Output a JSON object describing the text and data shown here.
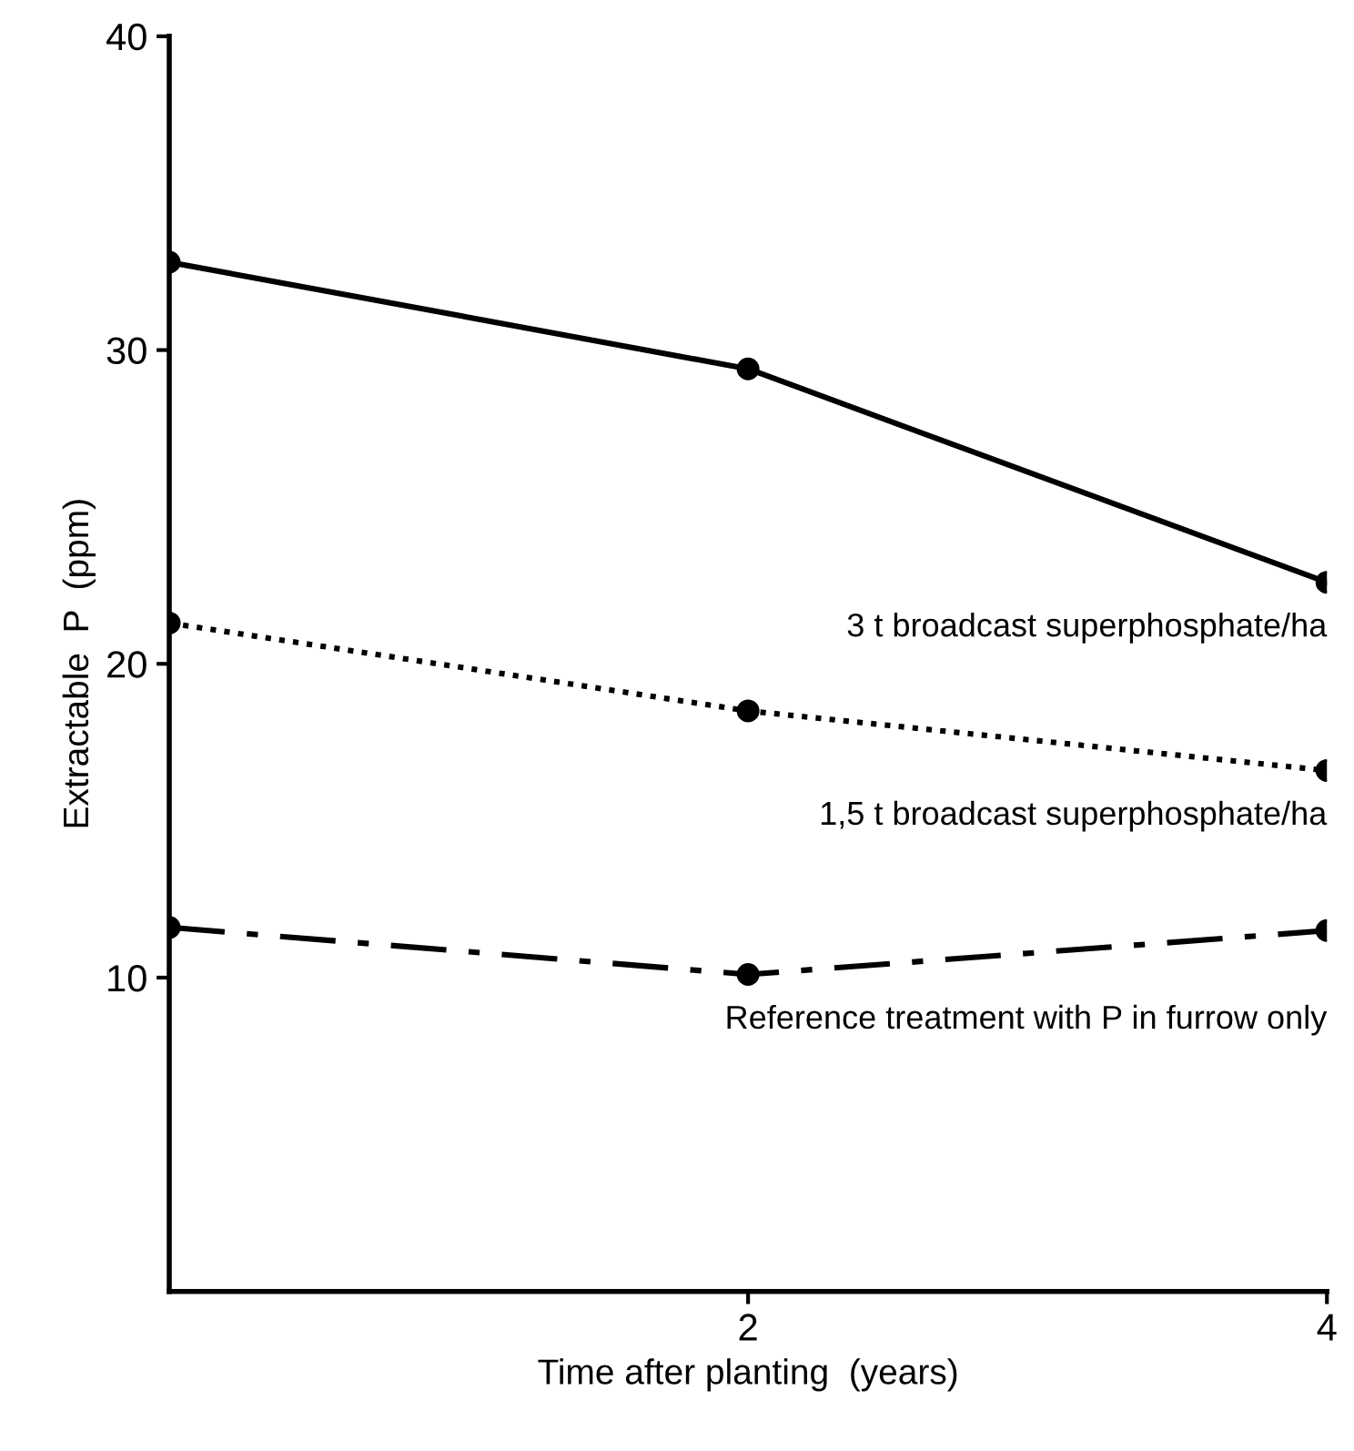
{
  "chart_data": {
    "type": "line",
    "xlabel": "Time after planting  (years)",
    "ylabel": "Extractable  P  (ppm)",
    "x": [
      0,
      2,
      4
    ],
    "series": [
      {
        "name": "3 t broadcast superphosphate/ha",
        "color": "#000000",
        "values": [
          32.8,
          29.4,
          22.6
        ],
        "line_style": "solid"
      },
      {
        "name": "1,5 t broadcast superphosphate/ha",
        "color": "#000000",
        "values": [
          21.3,
          18.5,
          16.6
        ],
        "line_style": "dotted"
      },
      {
        "name": "Reference treatment with P in furrow only",
        "color": "#000000",
        "values": [
          11.6,
          10.1,
          11.5
        ],
        "line_style": "dashdot"
      }
    ],
    "xlim": [
      0,
      4
    ],
    "xticks": [
      2,
      4
    ],
    "ylim": [
      0,
      40
    ],
    "yticks": [
      10,
      20,
      30,
      40
    ],
    "marker": "circle",
    "grid": false,
    "legend": false
  }
}
